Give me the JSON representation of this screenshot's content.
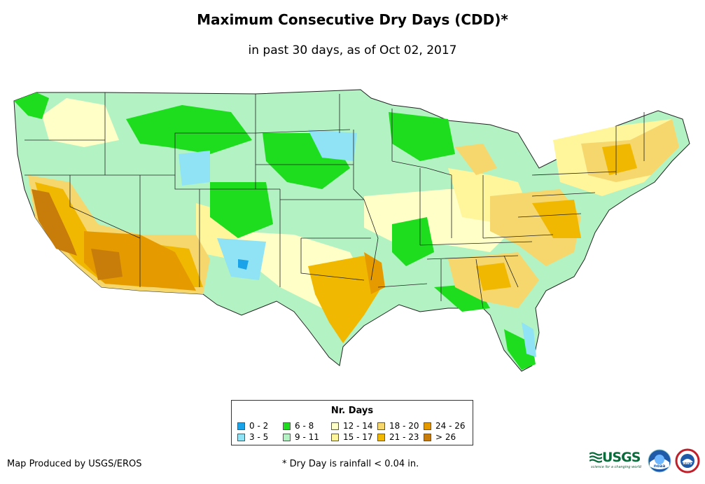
{
  "title": "Maximum Consecutive Dry Days (CDD)*",
  "subtitle": "in past 30 days, as of Oct 02, 2017",
  "legend": {
    "title": "Nr. Days",
    "items": [
      {
        "label": "0 - 2",
        "color": "#1aa3e8"
      },
      {
        "label": "3 - 5",
        "color": "#8fe3f5"
      },
      {
        "label": "6 - 8",
        "color": "#1edc1e"
      },
      {
        "label": "9 - 11",
        "color": "#b3f2c3"
      },
      {
        "label": "12 - 14",
        "color": "#ffffc8"
      },
      {
        "label": "15 - 17",
        "color": "#fff59b"
      },
      {
        "label": "18 - 20",
        "color": "#f5d76e"
      },
      {
        "label": "21 - 23",
        "color": "#f0b800"
      },
      {
        "label": "24 - 26",
        "color": "#e59a00"
      },
      {
        "label": "> 26",
        "color": "#c87d0a"
      }
    ]
  },
  "credit": "Map Produced by USGS/EROS",
  "footnote": "* Dry Day is rainfall < 0.04 in.",
  "logos": {
    "usgs_text": "USGS",
    "usgs_tagline": "science for a changing world",
    "noaa_text": "noaa",
    "nws_text": "NWS"
  },
  "colors": {
    "state_border": "#222222",
    "ocean": "#ffffff"
  }
}
